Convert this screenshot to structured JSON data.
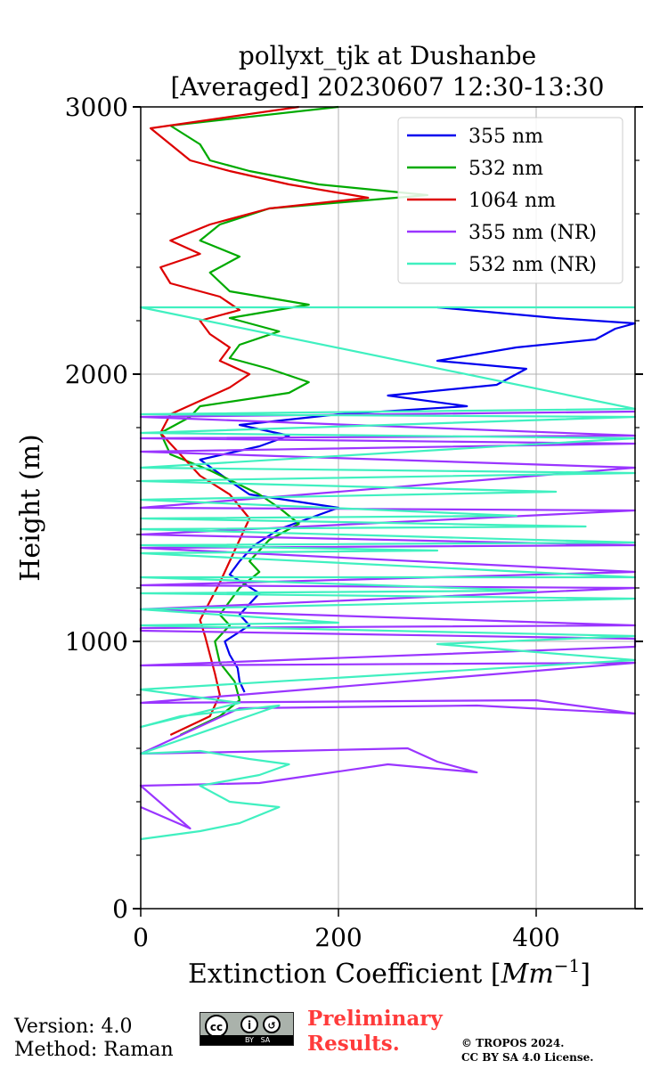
{
  "chart_data": {
    "type": "line",
    "title_line1": "pollyxt_tjk at Dushanbe",
    "title_line2": "[Averaged] 20230607 12:30-13:30",
    "xlabel": "Extinction Coefficient [",
    "xlabel_unit": "Mm",
    "xlabel_exp": "−1",
    "xlabel_close": "]",
    "ylabel": "Height (m)",
    "xlim": [
      0,
      500
    ],
    "ylim": [
      0,
      3000
    ],
    "x_ticks": [
      "0",
      "200",
      "400"
    ],
    "x_tick_values": [
      0,
      200,
      400
    ],
    "y_ticks": [
      "0",
      "1000",
      "2000",
      "3000"
    ],
    "y_tick_values": [
      0,
      1000,
      2000,
      3000
    ],
    "grid": true,
    "legend_position": "top-right",
    "series": [
      {
        "name": "355 nm",
        "color": "#0000ee",
        "points": [
          [
            105,
            810
          ],
          [
            100,
            850
          ],
          [
            98,
            900
          ],
          [
            90,
            950
          ],
          [
            85,
            1000
          ],
          [
            110,
            1060
          ],
          [
            100,
            1100
          ],
          [
            120,
            1180
          ],
          [
            90,
            1250
          ],
          [
            100,
            1300
          ],
          [
            115,
            1360
          ],
          [
            140,
            1420
          ],
          [
            200,
            1500
          ],
          [
            110,
            1550
          ],
          [
            90,
            1600
          ],
          [
            60,
            1680
          ],
          [
            120,
            1730
          ],
          [
            150,
            1770
          ],
          [
            100,
            1810
          ],
          [
            200,
            1850
          ],
          [
            330,
            1880
          ],
          [
            250,
            1920
          ],
          [
            360,
            1960
          ],
          [
            390,
            2020
          ],
          [
            300,
            2050
          ],
          [
            380,
            2100
          ],
          [
            460,
            2130
          ],
          [
            480,
            2170
          ],
          [
            500,
            2190
          ],
          [
            420,
            2210
          ],
          [
            300,
            2250
          ]
        ]
      },
      {
        "name": "532 nm",
        "color": "#00aa00",
        "points": [
          [
            40,
            650
          ],
          [
            80,
            720
          ],
          [
            100,
            780
          ],
          [
            95,
            850
          ],
          [
            80,
            920
          ],
          [
            75,
            1000
          ],
          [
            90,
            1060
          ],
          [
            80,
            1100
          ],
          [
            90,
            1150
          ],
          [
            100,
            1200
          ],
          [
            120,
            1260
          ],
          [
            110,
            1300
          ],
          [
            130,
            1380
          ],
          [
            160,
            1440
          ],
          [
            140,
            1500
          ],
          [
            120,
            1550
          ],
          [
            70,
            1640
          ],
          [
            30,
            1700
          ],
          [
            20,
            1780
          ],
          [
            50,
            1840
          ],
          [
            60,
            1880
          ],
          [
            150,
            1930
          ],
          [
            170,
            1970
          ],
          [
            130,
            2020
          ],
          [
            90,
            2060
          ],
          [
            100,
            2110
          ],
          [
            140,
            2160
          ],
          [
            90,
            2210
          ],
          [
            170,
            2260
          ],
          [
            90,
            2310
          ],
          [
            70,
            2380
          ],
          [
            100,
            2440
          ],
          [
            60,
            2500
          ],
          [
            80,
            2560
          ],
          [
            130,
            2620
          ],
          [
            290,
            2670
          ],
          [
            180,
            2710
          ],
          [
            110,
            2760
          ],
          [
            70,
            2800
          ],
          [
            60,
            2860
          ],
          [
            30,
            2930
          ],
          [
            200,
            3000
          ]
        ]
      },
      {
        "name": "1064 nm",
        "color": "#dd0000",
        "points": [
          [
            30,
            650
          ],
          [
            70,
            720
          ],
          [
            80,
            800
          ],
          [
            75,
            880
          ],
          [
            70,
            950
          ],
          [
            65,
            1020
          ],
          [
            60,
            1080
          ],
          [
            70,
            1150
          ],
          [
            80,
            1220
          ],
          [
            90,
            1300
          ],
          [
            100,
            1380
          ],
          [
            110,
            1460
          ],
          [
            90,
            1550
          ],
          [
            60,
            1620
          ],
          [
            40,
            1700
          ],
          [
            20,
            1780
          ],
          [
            30,
            1850
          ],
          [
            60,
            1900
          ],
          [
            90,
            1950
          ],
          [
            110,
            2000
          ],
          [
            80,
            2050
          ],
          [
            90,
            2100
          ],
          [
            70,
            2150
          ],
          [
            60,
            2200
          ],
          [
            100,
            2240
          ],
          [
            80,
            2290
          ],
          [
            30,
            2340
          ],
          [
            20,
            2400
          ],
          [
            60,
            2450
          ],
          [
            30,
            2500
          ],
          [
            70,
            2560
          ],
          [
            130,
            2620
          ],
          [
            230,
            2660
          ],
          [
            150,
            2710
          ],
          [
            90,
            2760
          ],
          [
            50,
            2800
          ],
          [
            30,
            2860
          ],
          [
            10,
            2920
          ],
          [
            160,
            3000
          ]
        ]
      },
      {
        "name": "355 nm (NR)",
        "color": "#9a35ff",
        "points": [
          [
            0,
            380
          ],
          [
            50,
            300
          ],
          [
            0,
            460
          ],
          [
            120,
            470
          ],
          [
            250,
            540
          ],
          [
            340,
            510
          ],
          [
            300,
            550
          ],
          [
            270,
            600
          ],
          [
            150,
            590
          ],
          [
            0,
            580
          ],
          [
            100,
            750
          ],
          [
            340,
            760
          ],
          [
            500,
            730
          ],
          [
            400,
            780
          ],
          [
            0,
            770
          ],
          [
            500,
            920
          ],
          [
            0,
            910
          ],
          [
            500,
            980
          ],
          [
            500,
            1010
          ],
          [
            0,
            1040
          ],
          [
            0,
            1050
          ],
          [
            500,
            1060
          ],
          [
            0,
            1120
          ],
          [
            500,
            1200
          ],
          [
            0,
            1210
          ],
          [
            500,
            1260
          ],
          [
            0,
            1350
          ],
          [
            500,
            1360
          ],
          [
            0,
            1400
          ],
          [
            500,
            1490
          ],
          [
            0,
            1500
          ],
          [
            500,
            1650
          ],
          [
            0,
            1710
          ],
          [
            500,
            1740
          ],
          [
            0,
            1760
          ],
          [
            500,
            1770
          ],
          [
            0,
            1840
          ],
          [
            500,
            1860
          ]
        ]
      },
      {
        "name": "532 nm (NR)",
        "color": "#40f0c0",
        "points": [
          [
            0,
            260
          ],
          [
            60,
            290
          ],
          [
            100,
            320
          ],
          [
            140,
            380
          ],
          [
            90,
            400
          ],
          [
            60,
            460
          ],
          [
            120,
            500
          ],
          [
            150,
            540
          ],
          [
            110,
            560
          ],
          [
            60,
            590
          ],
          [
            0,
            580
          ],
          [
            140,
            760
          ],
          [
            40,
            720
          ],
          [
            0,
            680
          ],
          [
            100,
            770
          ],
          [
            0,
            820
          ],
          [
            500,
            930
          ],
          [
            400,
            960
          ],
          [
            300,
            990
          ],
          [
            500,
            1020
          ],
          [
            0,
            1060
          ],
          [
            200,
            1070
          ],
          [
            0,
            1120
          ],
          [
            500,
            1160
          ],
          [
            0,
            1180
          ],
          [
            400,
            1190
          ],
          [
            0,
            1240
          ],
          [
            500,
            1240
          ],
          [
            0,
            1330
          ],
          [
            300,
            1340
          ],
          [
            0,
            1360
          ],
          [
            500,
            1370
          ],
          [
            0,
            1420
          ],
          [
            450,
            1430
          ],
          [
            0,
            1460
          ],
          [
            380,
            1470
          ],
          [
            0,
            1530
          ],
          [
            420,
            1560
          ],
          [
            0,
            1600
          ],
          [
            500,
            1630
          ],
          [
            0,
            1650
          ],
          [
            500,
            1760
          ],
          [
            0,
            1780
          ],
          [
            500,
            1840
          ],
          [
            0,
            1850
          ],
          [
            500,
            1870
          ],
          [
            0,
            2250
          ],
          [
            500,
            2250
          ]
        ]
      }
    ]
  },
  "footer": {
    "version": "Version: 4.0",
    "method": "Method: Raman",
    "preliminary_line1": "Preliminary",
    "preliminary_line2": "Results.",
    "copyright_line1": "© TROPOS 2024.",
    "copyright_line2": "CC BY SA 4.0 License.",
    "cc_badge_text": "BY   SA"
  }
}
